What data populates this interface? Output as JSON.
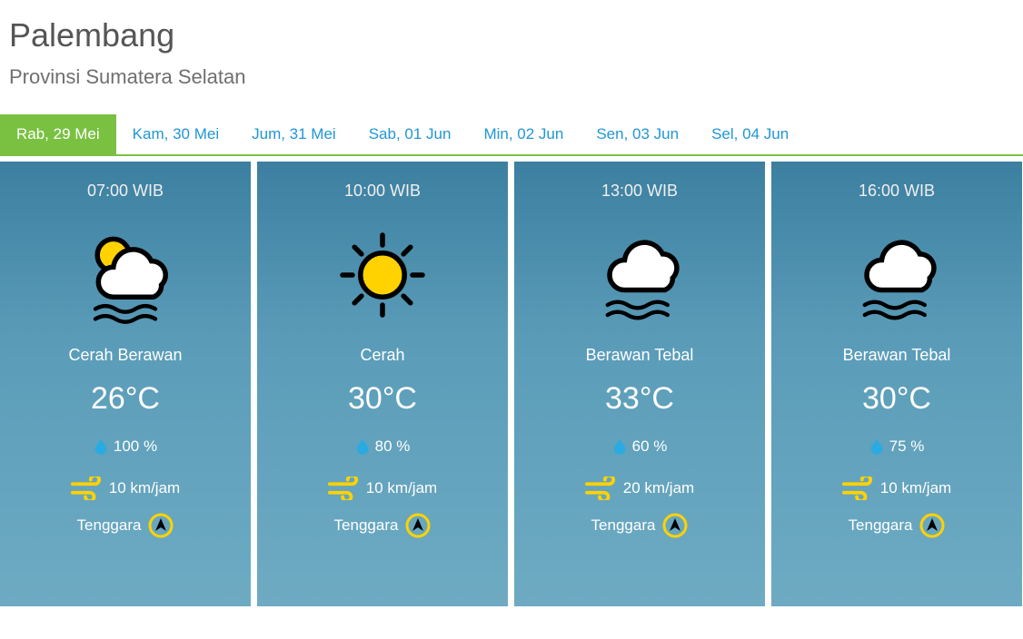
{
  "header": {
    "city": "Palembang",
    "province": "Provinsi Sumatera Selatan"
  },
  "colors": {
    "accent_green": "#7ac142",
    "link_blue": "#2196d6",
    "text_gray": "#555555",
    "icon_yellow": "#ffd200",
    "icon_outline": "#000000",
    "drop_blue": "#29abe2"
  },
  "tabs": [
    {
      "label": "Rab, 29 Mei",
      "active": true
    },
    {
      "label": "Kam, 30 Mei",
      "active": false
    },
    {
      "label": "Jum, 31 Mei",
      "active": false
    },
    {
      "label": "Sab, 01 Jun",
      "active": false
    },
    {
      "label": "Min, 02 Jun",
      "active": false
    },
    {
      "label": "Sen, 03 Jun",
      "active": false
    },
    {
      "label": "Sel, 04 Jun",
      "active": false
    }
  ],
  "forecast": [
    {
      "time": "07:00 WIB",
      "icon": "partly-cloudy-fog",
      "condition": "Cerah Berawan",
      "temp": "26°C",
      "humidity": "100 %",
      "wind_speed": "10 km/jam",
      "wind_dir": "Tenggara"
    },
    {
      "time": "10:00 WIB",
      "icon": "sunny",
      "condition": "Cerah",
      "temp": "30°C",
      "humidity": "80 %",
      "wind_speed": "10 km/jam",
      "wind_dir": "Tenggara"
    },
    {
      "time": "13:00 WIB",
      "icon": "cloudy-fog",
      "condition": "Berawan Tebal",
      "temp": "33°C",
      "humidity": "60 %",
      "wind_speed": "20 km/jam",
      "wind_dir": "Tenggara"
    },
    {
      "time": "16:00 WIB",
      "icon": "cloudy-fog",
      "condition": "Berawan Tebal",
      "temp": "30°C",
      "humidity": "75 %",
      "wind_speed": "10 km/jam",
      "wind_dir": "Tenggara"
    }
  ]
}
